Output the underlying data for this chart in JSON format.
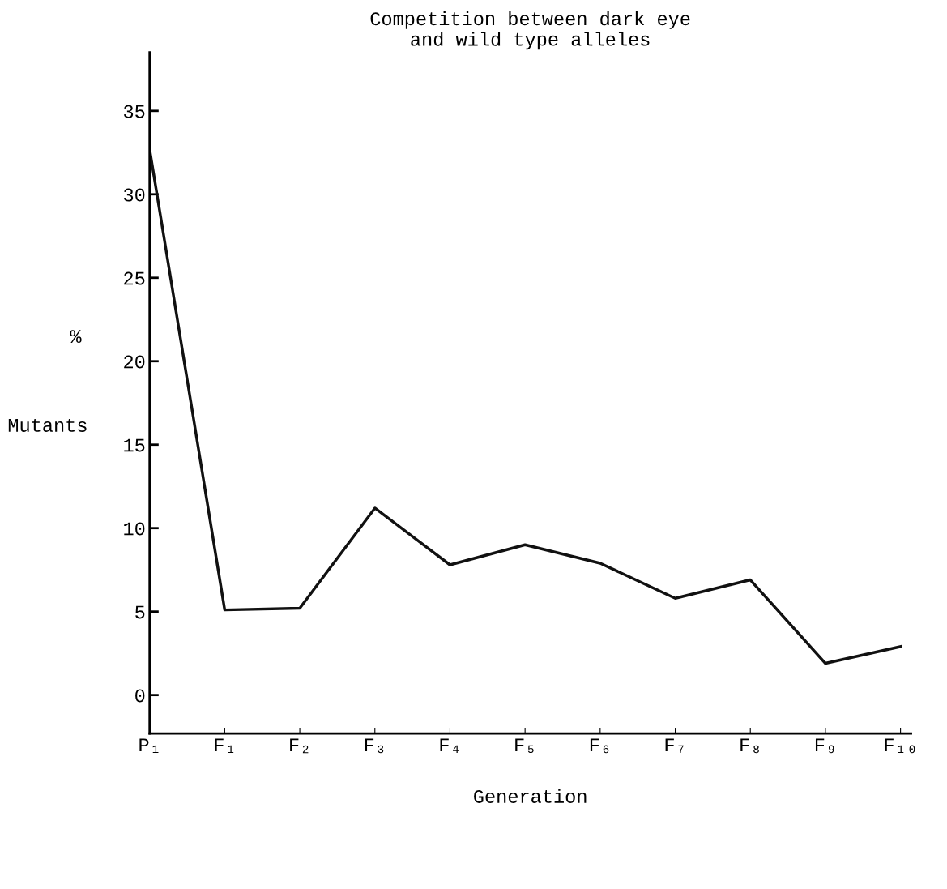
{
  "chart_data": {
    "type": "line",
    "title": "Competition between dark eye\nand wild type alleles",
    "xlabel": "Generation",
    "ylabel": "Mutants",
    "annotations": [
      "%"
    ],
    "categories": [
      "P₁",
      "F₁",
      "F₂",
      "F₃",
      "F₄",
      "F₅",
      "F₆",
      "F₇",
      "F₈",
      "F₉",
      "F₁₀"
    ],
    "series": [
      {
        "color": "#111111",
        "values": [
          32.7,
          5.1,
          5.2,
          11.2,
          7.8,
          9.0,
          7.9,
          5.8,
          6.9,
          1.9,
          2.9
        ]
      }
    ],
    "ylim": [
      -2.3,
      38.5
    ],
    "yticks": [
      0,
      5,
      10,
      15,
      20,
      25,
      30,
      35
    ],
    "grid": false,
    "marker": "none",
    "line_style": "solid"
  }
}
